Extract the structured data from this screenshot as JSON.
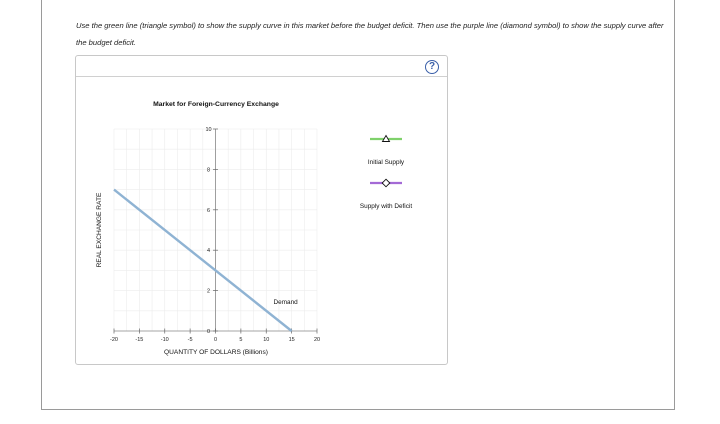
{
  "instructions": "Use the green line (triangle symbol) to show the supply curve in this market before the budget deficit. Then use the purple line (diamond symbol) to show the supply curve after the budget deficit.",
  "help_label": "?",
  "colors": {
    "demand": "#8fb3d3",
    "initial_supply": "#7fd16b",
    "supply_with_deficit": "#a46ad6"
  },
  "legend": {
    "initial_supply": {
      "label": "Initial Supply",
      "icon": "triangle-icon"
    },
    "supply_with_deficit": {
      "label": "Supply with Deficit",
      "icon": "diamond-icon"
    }
  },
  "chart_data": {
    "type": "line",
    "title": "Market for Foreign-Currency Exchange",
    "xlabel": "QUANTITY OF DOLLARS (Billions)",
    "ylabel": "REAL EXCHANGE RATE",
    "xlim": [
      -20,
      20
    ],
    "ylim": [
      0,
      10
    ],
    "xticks": [
      -20,
      -15,
      -10,
      -5,
      0,
      5,
      10,
      15,
      20
    ],
    "yticks": [
      0,
      2,
      4,
      6,
      8,
      10
    ],
    "grid": true,
    "series": [
      {
        "name": "Demand",
        "x": [
          -20,
          15
        ],
        "y": [
          7,
          0
        ]
      }
    ]
  }
}
